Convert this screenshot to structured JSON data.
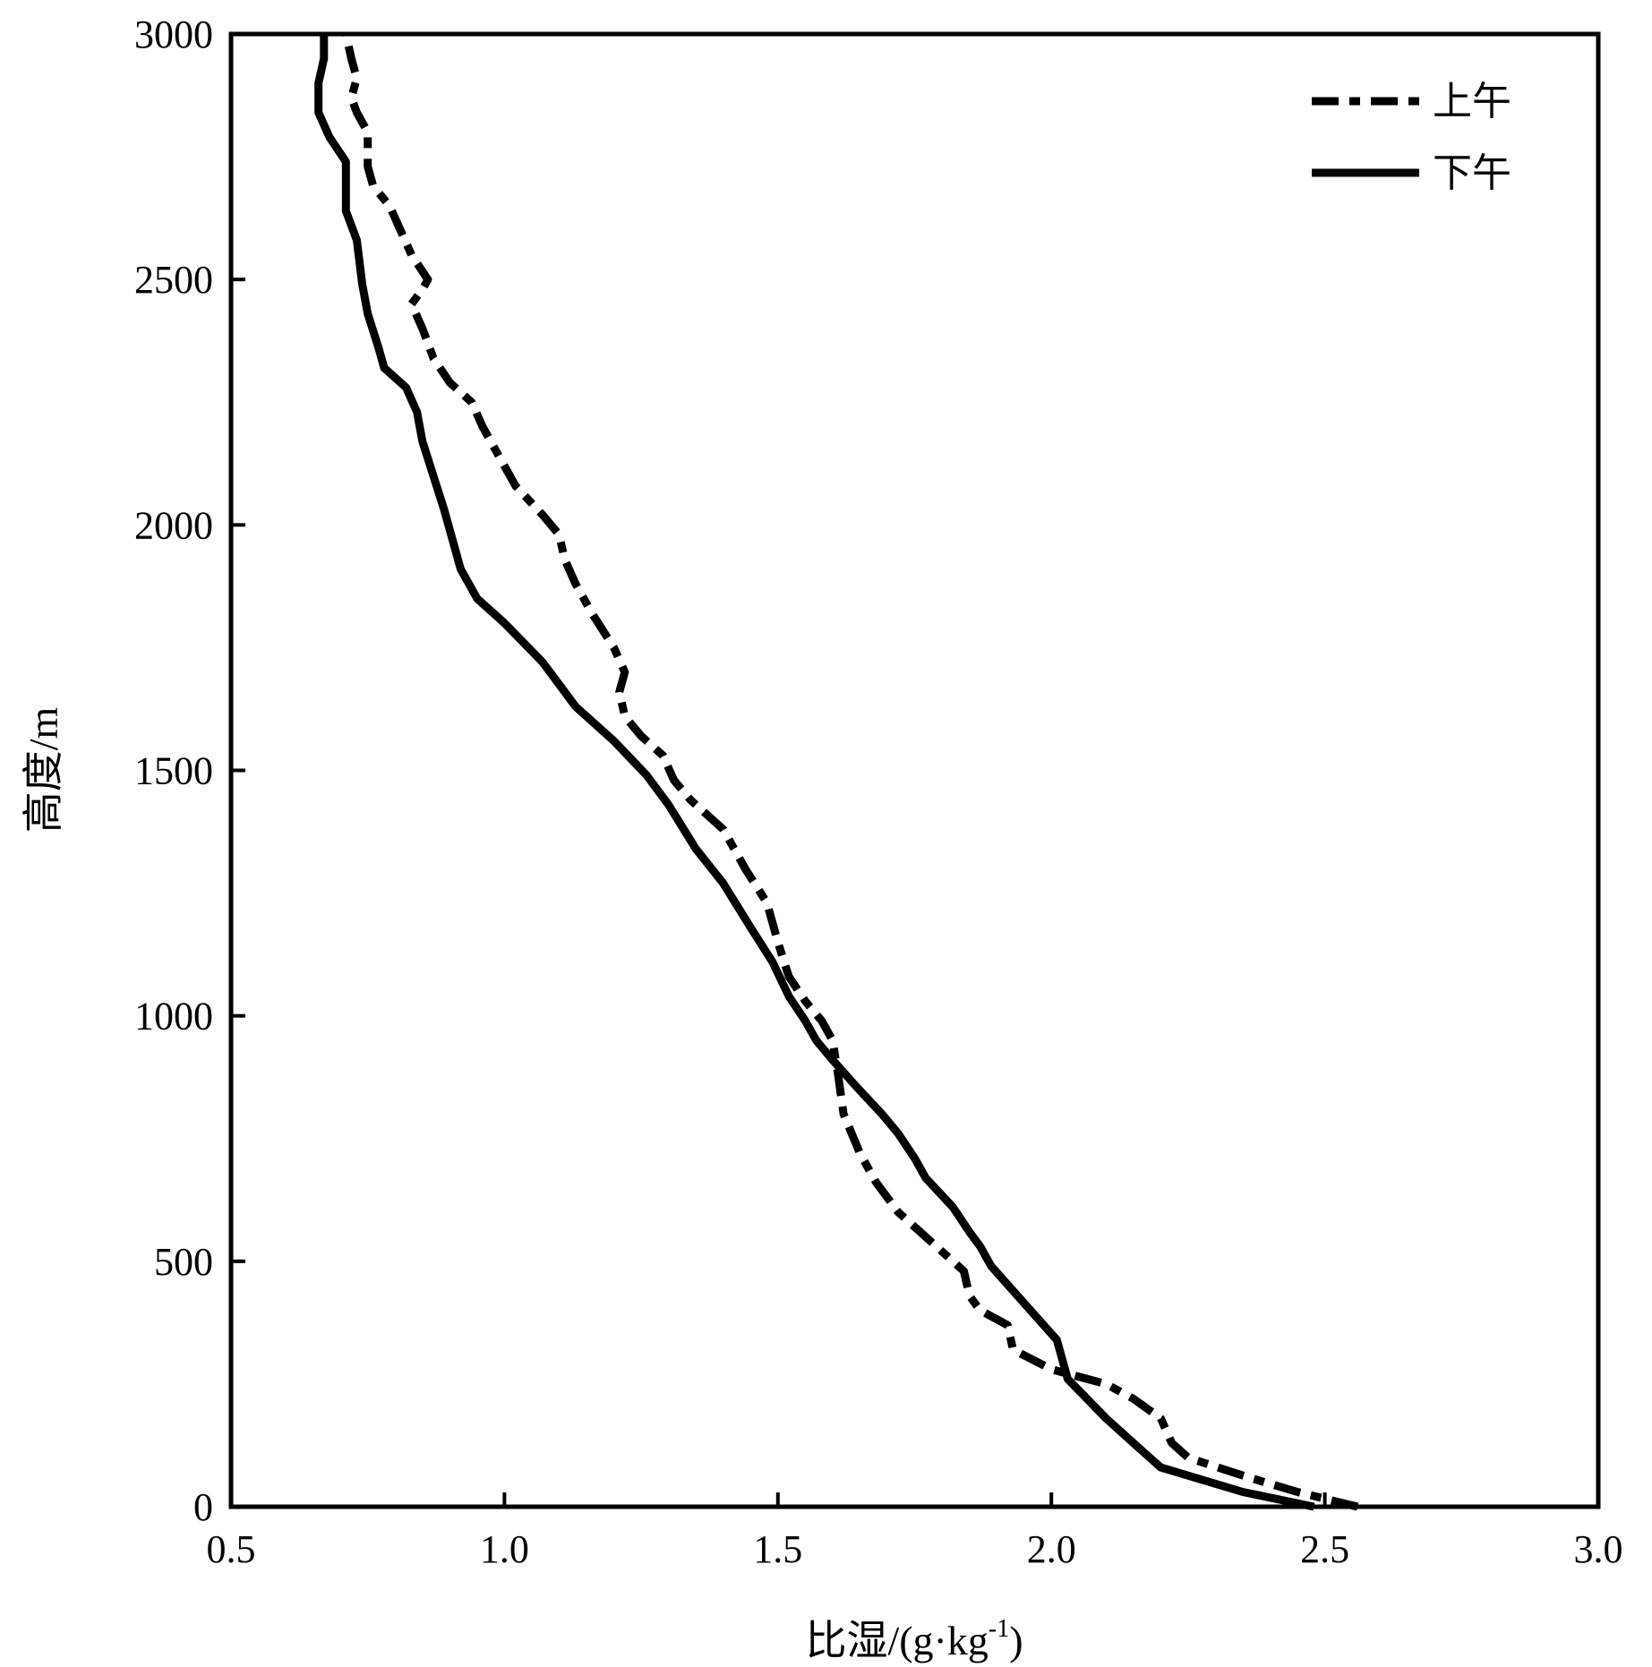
{
  "chart_data": {
    "type": "line",
    "title": "",
    "xlabel_main": "比湿/(g·kg",
    "xlabel_sup": "-1",
    "xlabel_end": ")",
    "ylabel": "高度/m",
    "xlim": [
      0.5,
      3.0
    ],
    "ylim": [
      0,
      3000
    ],
    "xticks": [
      "0.5",
      "1.0",
      "1.5",
      "2.0",
      "2.5",
      "3.0"
    ],
    "yticks": [
      "0",
      "500",
      "1000",
      "1500",
      "2000",
      "2500",
      "3000"
    ],
    "grid": false,
    "legend_position": "top-right",
    "series": [
      {
        "name": "上午",
        "style": "dash-dot",
        "color": "#000000",
        "points": [
          [
            2.56,
            0
          ],
          [
            2.45,
            30
          ],
          [
            2.36,
            60
          ],
          [
            2.25,
            100
          ],
          [
            2.22,
            130
          ],
          [
            2.2,
            180
          ],
          [
            2.15,
            220
          ],
          [
            2.1,
            250
          ],
          [
            2.0,
            280
          ],
          [
            1.93,
            320
          ],
          [
            1.92,
            370
          ],
          [
            1.87,
            400
          ],
          [
            1.85,
            430
          ],
          [
            1.84,
            480
          ],
          [
            1.79,
            530
          ],
          [
            1.76,
            560
          ],
          [
            1.72,
            600
          ],
          [
            1.68,
            660
          ],
          [
            1.65,
            720
          ],
          [
            1.62,
            800
          ],
          [
            1.61,
            880
          ],
          [
            1.6,
            950
          ],
          [
            1.58,
            990
          ],
          [
            1.55,
            1030
          ],
          [
            1.52,
            1080
          ],
          [
            1.5,
            1150
          ],
          [
            1.48,
            1230
          ],
          [
            1.44,
            1300
          ],
          [
            1.4,
            1380
          ],
          [
            1.34,
            1440
          ],
          [
            1.31,
            1480
          ],
          [
            1.29,
            1530
          ],
          [
            1.25,
            1570
          ],
          [
            1.22,
            1610
          ],
          [
            1.21,
            1660
          ],
          [
            1.22,
            1700
          ],
          [
            1.2,
            1750
          ],
          [
            1.16,
            1820
          ],
          [
            1.13,
            1880
          ],
          [
            1.11,
            1930
          ],
          [
            1.1,
            1980
          ],
          [
            1.07,
            2020
          ],
          [
            1.02,
            2080
          ],
          [
            0.99,
            2140
          ],
          [
            0.96,
            2200
          ],
          [
            0.94,
            2250
          ],
          [
            0.9,
            2290
          ],
          [
            0.87,
            2340
          ],
          [
            0.85,
            2400
          ],
          [
            0.83,
            2450
          ],
          [
            0.85,
            2480
          ],
          [
            0.86,
            2500
          ],
          [
            0.83,
            2550
          ],
          [
            0.81,
            2600
          ],
          [
            0.79,
            2650
          ],
          [
            0.76,
            2690
          ],
          [
            0.75,
            2730
          ],
          [
            0.75,
            2800
          ],
          [
            0.73,
            2840
          ],
          [
            0.72,
            2870
          ],
          [
            0.73,
            2910
          ],
          [
            0.72,
            2950
          ],
          [
            0.71,
            3000
          ]
        ]
      },
      {
        "name": "下午",
        "style": "solid",
        "color": "#000000",
        "points": [
          [
            2.48,
            0
          ],
          [
            2.35,
            30
          ],
          [
            2.2,
            80
          ],
          [
            2.17,
            110
          ],
          [
            2.1,
            180
          ],
          [
            2.03,
            260
          ],
          [
            2.01,
            340
          ],
          [
            1.97,
            390
          ],
          [
            1.93,
            440
          ],
          [
            1.89,
            490
          ],
          [
            1.87,
            530
          ],
          [
            1.85,
            560
          ],
          [
            1.82,
            610
          ],
          [
            1.77,
            670
          ],
          [
            1.75,
            710
          ],
          [
            1.72,
            760
          ],
          [
            1.69,
            800
          ],
          [
            1.64,
            860
          ],
          [
            1.6,
            910
          ],
          [
            1.57,
            950
          ],
          [
            1.55,
            990
          ],
          [
            1.52,
            1040
          ],
          [
            1.49,
            1110
          ],
          [
            1.45,
            1180
          ],
          [
            1.4,
            1270
          ],
          [
            1.35,
            1340
          ],
          [
            1.3,
            1430
          ],
          [
            1.26,
            1490
          ],
          [
            1.2,
            1560
          ],
          [
            1.13,
            1630
          ],
          [
            1.07,
            1720
          ],
          [
            1.0,
            1800
          ],
          [
            0.95,
            1850
          ],
          [
            0.92,
            1910
          ],
          [
            0.91,
            1950
          ],
          [
            0.89,
            2030
          ],
          [
            0.87,
            2100
          ],
          [
            0.85,
            2170
          ],
          [
            0.84,
            2230
          ],
          [
            0.82,
            2280
          ],
          [
            0.78,
            2320
          ],
          [
            0.77,
            2360
          ],
          [
            0.75,
            2430
          ],
          [
            0.74,
            2490
          ],
          [
            0.73,
            2580
          ],
          [
            0.71,
            2640
          ],
          [
            0.71,
            2690
          ],
          [
            0.71,
            2740
          ],
          [
            0.68,
            2790
          ],
          [
            0.66,
            2840
          ],
          [
            0.66,
            2900
          ],
          [
            0.67,
            2950
          ],
          [
            0.67,
            3000
          ]
        ]
      }
    ]
  }
}
